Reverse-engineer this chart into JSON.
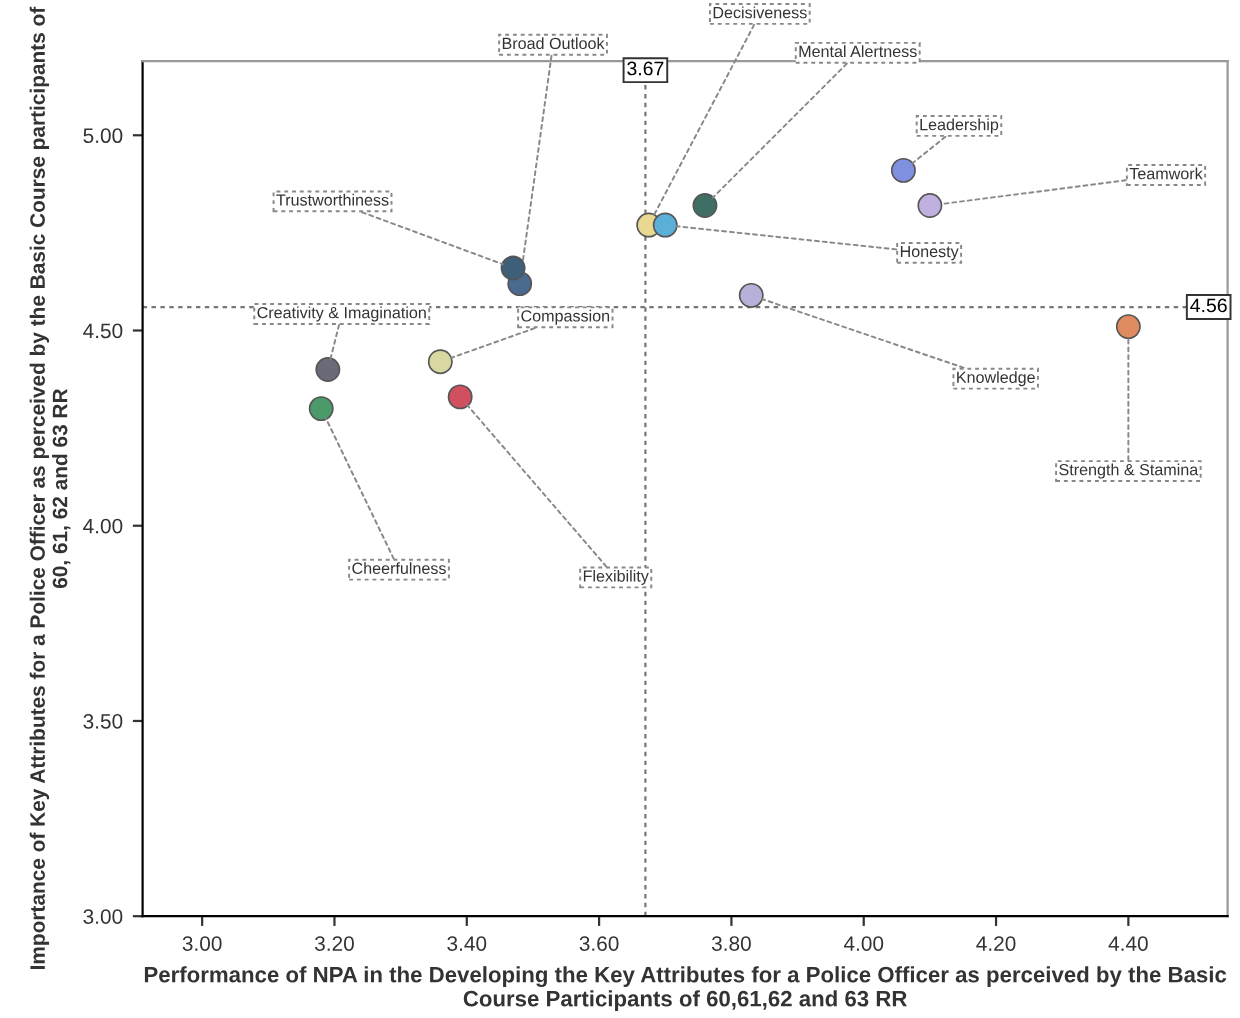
{
  "chart_data": {
    "type": "scatter",
    "xlabel": "Performance of NPA in the Developing the Key Attributes for a Police Officer as perceived by the Basic Course Participants of 60,61,62 and 63 RR",
    "ylabel": "Importance of Key Attributes for a Police Officer as perceived by the Basic Course participants of 60, 61, 62 and 63 RR",
    "xlim": [
      2.91,
      4.55
    ],
    "ylim": [
      3.0,
      5.19
    ],
    "xticks": [
      {
        "value": 3.0,
        "label": "3.00"
      },
      {
        "value": 3.2,
        "label": "3.20"
      },
      {
        "value": 3.4,
        "label": "3.40"
      },
      {
        "value": 3.6,
        "label": "3.60"
      },
      {
        "value": 3.8,
        "label": "3.80"
      },
      {
        "value": 4.0,
        "label": "4.00"
      },
      {
        "value": 4.2,
        "label": "4.20"
      },
      {
        "value": 4.4,
        "label": "4.40"
      }
    ],
    "yticks": [
      {
        "value": 3.0,
        "label": "3.00"
      },
      {
        "value": 3.5,
        "label": "3.50"
      },
      {
        "value": 4.0,
        "label": "4.00"
      },
      {
        "value": 4.5,
        "label": "4.50"
      },
      {
        "value": 5.0,
        "label": "5.00"
      }
    ],
    "grid": false,
    "legend": false,
    "marker": "circle",
    "ref_lines": [
      {
        "axis": "x",
        "value": 3.67,
        "label": "3.67"
      },
      {
        "axis": "y",
        "value": 4.56,
        "label": "4.56"
      }
    ],
    "series": [
      {
        "name": "Decisiveness",
        "color": "#e8d890",
        "x": [
          3.675
        ],
        "values": [
          4.77
        ]
      },
      {
        "name": "Honesty",
        "color": "#5ab0d8",
        "x": [
          3.7
        ],
        "values": [
          4.77
        ]
      },
      {
        "name": "Mental Alertness",
        "color": "#3f6f64",
        "x": [
          3.76
        ],
        "values": [
          4.82
        ]
      },
      {
        "name": "Leadership",
        "color": "#8090e0",
        "x": [
          4.06
        ],
        "values": [
          4.91
        ]
      },
      {
        "name": "Teamwork",
        "color": "#c0b0e0",
        "x": [
          4.1
        ],
        "values": [
          4.82
        ]
      },
      {
        "name": "Knowledge",
        "color": "#b8b0d8",
        "x": [
          3.83
        ],
        "values": [
          4.59
        ]
      },
      {
        "name": "Strength & Stamina",
        "color": "#e08a60",
        "x": [
          4.4
        ],
        "values": [
          4.51
        ]
      },
      {
        "name": "Broad Outlook",
        "color": "#4a6a90",
        "x": [
          3.48
        ],
        "values": [
          4.62
        ]
      },
      {
        "name": "Trustworthiness",
        "color": "#3d5f78",
        "x": [
          3.47
        ],
        "values": [
          4.66
        ]
      },
      {
        "name": "Creativity & Imagination",
        "color": "#6a6a78",
        "x": [
          3.19
        ],
        "values": [
          4.4
        ]
      },
      {
        "name": "Compassion",
        "color": "#d8d8a0",
        "x": [
          3.36
        ],
        "values": [
          4.42
        ]
      },
      {
        "name": "Cheerfulness",
        "color": "#4a9a6a",
        "x": [
          3.18
        ],
        "values": [
          4.3
        ]
      },
      {
        "name": "Flexibility",
        "color": "#d05060",
        "x": [
          3.39
        ],
        "values": [
          4.33
        ]
      }
    ]
  }
}
